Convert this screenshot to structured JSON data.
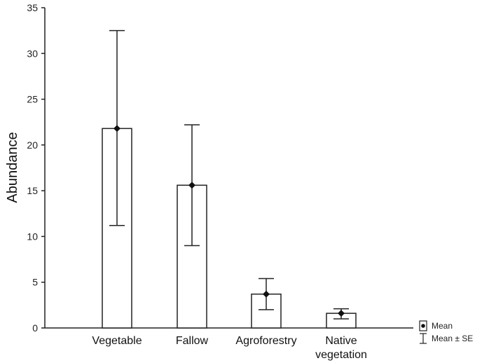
{
  "chart_data": {
    "type": "bar",
    "title": "",
    "xlabel": "",
    "ylabel": "Abundance",
    "ylim": [
      0,
      35
    ],
    "yticks": [
      0,
      5,
      10,
      15,
      20,
      25,
      30,
      35
    ],
    "categories": [
      [
        "Vegetable"
      ],
      [
        "Fallow"
      ],
      [
        "Agroforestry"
      ],
      [
        "Native",
        "vegetation"
      ]
    ],
    "series": [
      {
        "values": [
          21.8,
          15.6,
          3.7,
          1.6
        ],
        "se_lower": [
          11.2,
          9.0,
          2.0,
          1.0
        ],
        "se_upper": [
          32.5,
          22.2,
          5.4,
          2.1
        ]
      }
    ],
    "legend": {
      "position": "bottom-right",
      "items": [
        "Mean",
        "Mean ± SE"
      ]
    },
    "grid": false
  }
}
